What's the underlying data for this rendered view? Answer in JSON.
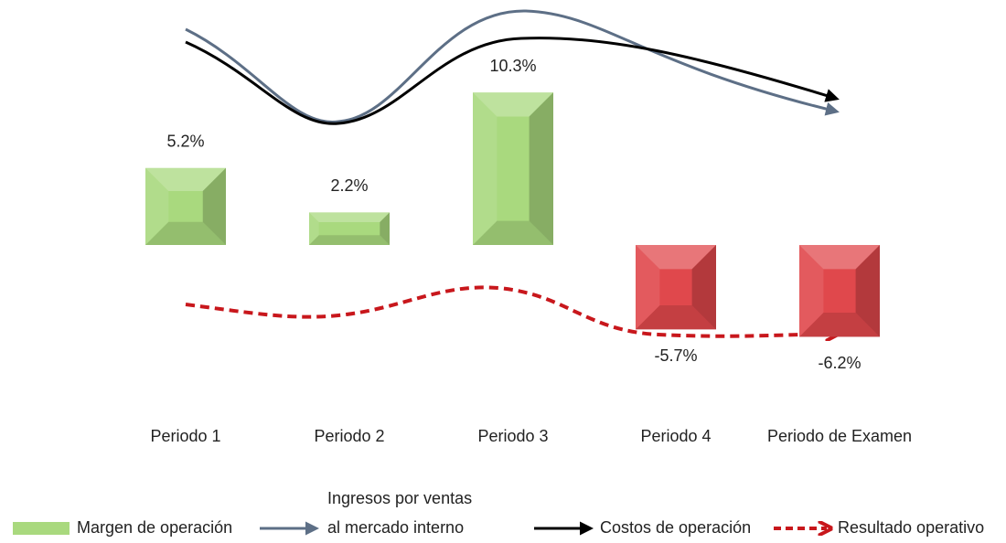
{
  "chart_data": {
    "type": "bar",
    "categories": [
      "Periodo 1",
      "Periodo 2",
      "Periodo 3",
      "Periodo 4",
      "Periodo de Examen"
    ],
    "values": [
      5.2,
      2.2,
      10.3,
      -5.7,
      -6.2
    ],
    "value_labels": [
      "5.2%",
      "2.2%",
      "10.3%",
      "-5.7%",
      "-6.2%"
    ],
    "positive_color": "#a9d97e",
    "negative_color": "#e0484c",
    "legend": [
      {
        "lines": [
          "Margen de operación"
        ],
        "color": "#a9d97e"
      },
      {
        "lines": [
          "Ingresos por ventas",
          "al mercado interno"
        ],
        "color": "#5d6f86"
      },
      {
        "lines": [
          "Costos de operación"
        ],
        "color": "#000000"
      },
      {
        "lines": [
          "Resultado operativo"
        ],
        "color": "#c8171c"
      }
    ]
  }
}
